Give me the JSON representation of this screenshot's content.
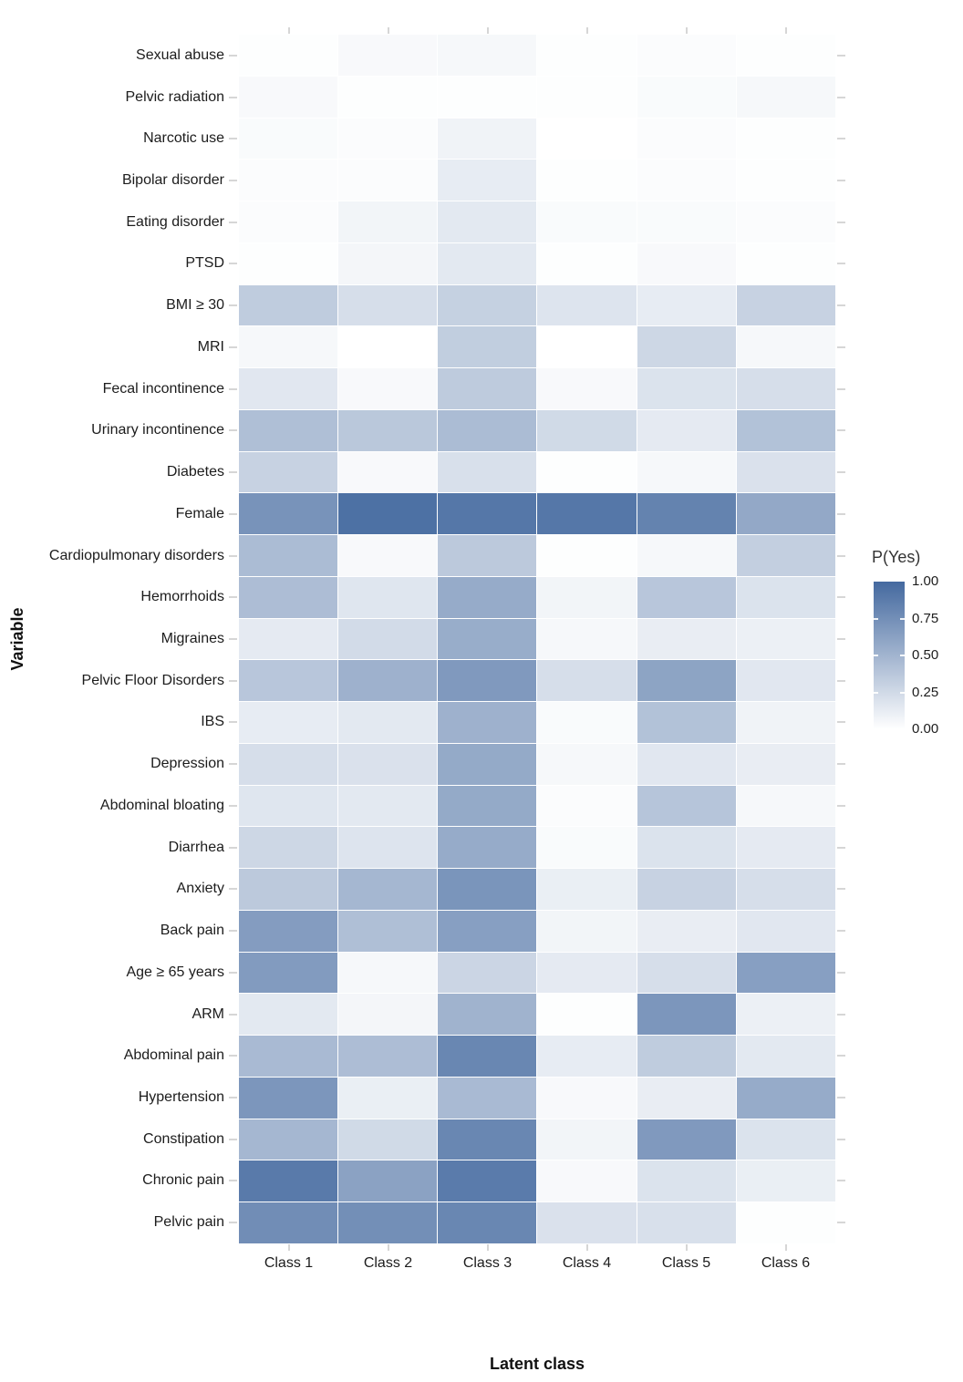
{
  "chart_data": {
    "type": "heatmap",
    "title": "",
    "xlabel": "Latent class",
    "ylabel": "Variable",
    "value_label": "P(Yes)",
    "columns": [
      "Class 1",
      "Class 2",
      "Class 3",
      "Class 4",
      "Class 5",
      "Class 6"
    ],
    "rows": [
      "Sexual abuse",
      "Pelvic radiation",
      "Narcotic use",
      "Bipolar disorder",
      "Eating disorder",
      "PTSD",
      "BMI ≥ 30",
      "MRI",
      "Fecal incontinence",
      "Urinary incontinence",
      "Diabetes",
      "Female",
      "Cardiopulmonary disorders",
      "Hemorrhoids",
      "Migraines",
      "Pelvic Floor Disorders",
      "IBS",
      "Depression",
      "Abdominal bloating",
      "Diarrhea",
      "Anxiety",
      "Back pain",
      "Age ≥ 65 years",
      "ARM",
      "Abdominal pain",
      "Hypertension",
      "Constipation",
      "Chronic pain",
      "Pelvic pain"
    ],
    "values": [
      [
        0.01,
        0.04,
        0.05,
        0.01,
        0.02,
        0.01
      ],
      [
        0.04,
        0.01,
        0.01,
        0.01,
        0.03,
        0.05
      ],
      [
        0.03,
        0.02,
        0.08,
        0.0,
        0.02,
        0.01
      ],
      [
        0.02,
        0.02,
        0.13,
        0.01,
        0.02,
        0.01
      ],
      [
        0.02,
        0.07,
        0.15,
        0.03,
        0.03,
        0.02
      ],
      [
        0.01,
        0.06,
        0.15,
        0.01,
        0.04,
        0.01
      ],
      [
        0.34,
        0.22,
        0.31,
        0.18,
        0.13,
        0.3
      ],
      [
        0.05,
        0.0,
        0.33,
        0.0,
        0.27,
        0.05
      ],
      [
        0.16,
        0.04,
        0.35,
        0.04,
        0.19,
        0.22
      ],
      [
        0.43,
        0.37,
        0.45,
        0.25,
        0.14,
        0.41
      ],
      [
        0.3,
        0.04,
        0.21,
        0.01,
        0.05,
        0.2
      ],
      [
        0.72,
        0.95,
        0.91,
        0.91,
        0.83,
        0.58
      ],
      [
        0.45,
        0.04,
        0.36,
        0.01,
        0.05,
        0.32
      ],
      [
        0.44,
        0.17,
        0.56,
        0.07,
        0.38,
        0.19
      ],
      [
        0.14,
        0.24,
        0.55,
        0.05,
        0.12,
        0.1
      ],
      [
        0.38,
        0.52,
        0.68,
        0.22,
        0.61,
        0.16
      ],
      [
        0.13,
        0.15,
        0.52,
        0.03,
        0.41,
        0.08
      ],
      [
        0.22,
        0.2,
        0.57,
        0.05,
        0.16,
        0.12
      ],
      [
        0.17,
        0.15,
        0.57,
        0.02,
        0.39,
        0.05
      ],
      [
        0.27,
        0.18,
        0.56,
        0.03,
        0.19,
        0.14
      ],
      [
        0.36,
        0.48,
        0.71,
        0.11,
        0.3,
        0.22
      ],
      [
        0.66,
        0.43,
        0.64,
        0.07,
        0.12,
        0.16
      ],
      [
        0.67,
        0.05,
        0.28,
        0.14,
        0.22,
        0.64
      ],
      [
        0.15,
        0.06,
        0.51,
        0.01,
        0.7,
        0.1
      ],
      [
        0.46,
        0.44,
        0.8,
        0.13,
        0.34,
        0.15
      ],
      [
        0.7,
        0.11,
        0.46,
        0.04,
        0.12,
        0.56
      ],
      [
        0.48,
        0.25,
        0.8,
        0.07,
        0.68,
        0.19
      ],
      [
        0.89,
        0.62,
        0.88,
        0.04,
        0.19,
        0.11
      ],
      [
        0.76,
        0.75,
        0.8,
        0.2,
        0.21,
        0.01
      ]
    ],
    "legend": {
      "title": "P(Yes)",
      "tick_labels": [
        "1.00",
        "0.75",
        "0.50",
        "0.25",
        "0.00"
      ],
      "tick_values": [
        1.0,
        0.75,
        0.5,
        0.25,
        0.0
      ],
      "notch_values": [
        0.75,
        0.5,
        0.25
      ],
      "low_color": "#ffffff",
      "high_color": "#44699f",
      "position": "right"
    },
    "colors": {
      "tick_mark": "#d6d6d6",
      "axis_text": "#1c1c1c",
      "background": "#ffffff"
    },
    "grid": false,
    "vlim": [
      0.0,
      1.0
    ]
  }
}
